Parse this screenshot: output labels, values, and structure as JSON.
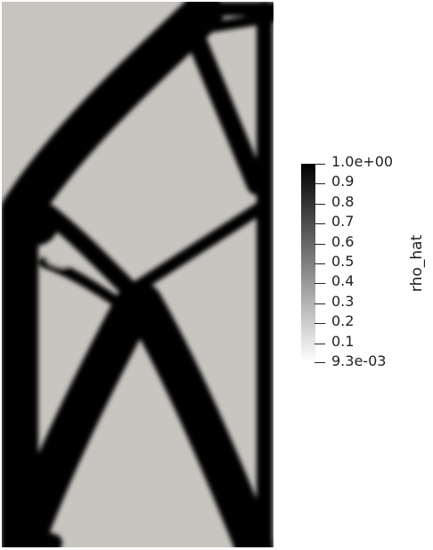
{
  "colorbar": {
    "title": "rho_hat",
    "ticks": [
      "1.0e+00",
      "0.9",
      "0.8",
      "0.7",
      "0.6",
      "0.5",
      "0.4",
      "0.3",
      "0.2",
      "0.1",
      "9.3e-03"
    ],
    "range": [
      0.0093,
      1.0
    ],
    "colors": {
      "high": "#000000",
      "low": "#ffffff"
    }
  },
  "field": {
    "solid_color": "#000000",
    "void_color": "#c8c5c1"
  }
}
